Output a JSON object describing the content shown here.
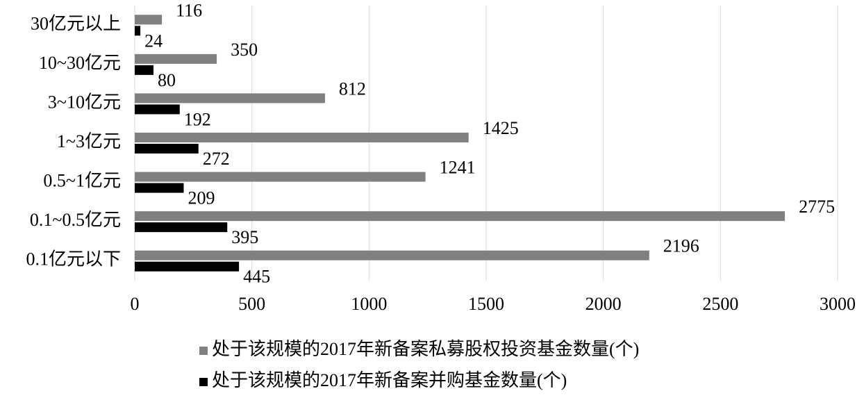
{
  "chart_data": {
    "type": "hbar",
    "categories": [
      "30亿元以上",
      "10~30亿元",
      "3~10亿元",
      "1~3亿元",
      "0.5~1亿元",
      "0.1~0.5亿元",
      "0.1亿元以下"
    ],
    "series": [
      {
        "name": "处于该规模的2017年新备案私募股权投资基金数量(个)",
        "color": "#808080",
        "values": [
          116,
          350,
          812,
          1425,
          1241,
          2775,
          2196
        ]
      },
      {
        "name": "处于该规模的2017年新备案并购基金数量(个)",
        "color": "#000000",
        "values": [
          24,
          80,
          192,
          272,
          209,
          395,
          445
        ]
      }
    ],
    "xlim": [
      0,
      3000
    ],
    "xticks": [
      0,
      500,
      1000,
      1500,
      2000,
      2500,
      3000
    ],
    "grid": true,
    "legend": "bottom"
  }
}
